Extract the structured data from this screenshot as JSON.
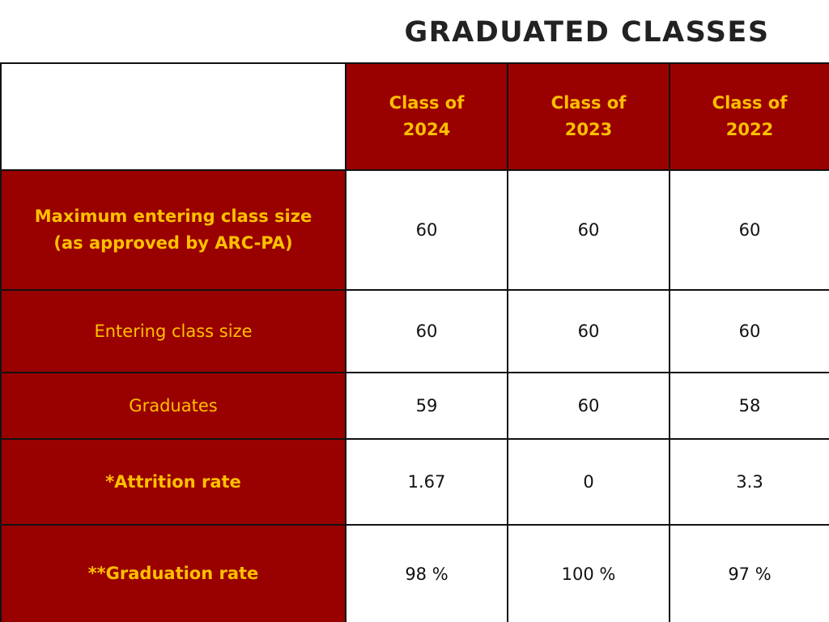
{
  "title": "GRADUATED CLASSES",
  "columns": [
    "Class of 2024",
    "Class of 2023",
    "Class of 2022"
  ],
  "rows": [
    {
      "label": "Maximum entering class size (as approved by ARC-PA)",
      "values": [
        "60",
        "60",
        "60"
      ]
    },
    {
      "label": "Entering class size",
      "values": [
        "60",
        "60",
        "60"
      ]
    },
    {
      "label": "Graduates",
      "values": [
        "59",
        "60",
        "58"
      ]
    },
    {
      "label": "*Attrition rate",
      "values": [
        "1.67",
        "0",
        "3.3"
      ]
    },
    {
      "label": "**Graduation rate",
      "values": [
        "98 %",
        "100 %",
        "97 %"
      ]
    }
  ],
  "colors": {
    "header_background": "#990000",
    "header_text": "#ffc000",
    "cell_background": "#ffffff",
    "cell_text": "#111111",
    "title_text": "#222222"
  }
}
